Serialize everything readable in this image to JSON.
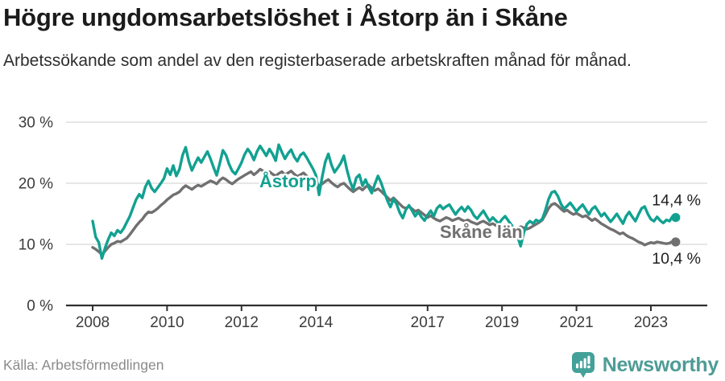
{
  "header": {
    "title": "Högre ungdomsarbetslöshet i Åstorp än i Skåne",
    "subtitle": "Arbetssökande som andel av den registerbaserade arbetskraften månad för månad."
  },
  "chart_data": {
    "type": "line",
    "title": "Högre ungdomsarbetslöshet i Åstorp än i Skåne",
    "xlabel": "",
    "ylabel": "Arbetssökande som andel av den registerbaserade arbetskraften",
    "x_unit": "month",
    "x_start": "2008-01",
    "x_end": "2023-09",
    "ylim": [
      0,
      30
    ],
    "grid": "horizontal",
    "legend_position": "inline-labels",
    "yticks": [
      {
        "value": 30,
        "label": "30 %"
      },
      {
        "value": 20,
        "label": "20 %"
      },
      {
        "value": 10,
        "label": "10 %"
      },
      {
        "value": 0,
        "label": "0 %"
      }
    ],
    "xticks": [
      {
        "year": 2008,
        "label": "2008"
      },
      {
        "year": 2010,
        "label": "2010"
      },
      {
        "year": 2012,
        "label": "2012"
      },
      {
        "year": 2014,
        "label": "2014"
      },
      {
        "year": 2017,
        "label": "2017"
      },
      {
        "year": 2019,
        "label": "2019"
      },
      {
        "year": 2021,
        "label": "2021"
      },
      {
        "year": 2023,
        "label": "2023"
      }
    ],
    "series": [
      {
        "name": "Åstorp",
        "color": "#12a191",
        "end_label": "14,4 %",
        "end_value": 14.4,
        "values": [
          13.8,
          11.2,
          10.3,
          7.7,
          9.4,
          10.8,
          11.9,
          11.4,
          12.3,
          11.9,
          12.6,
          13.6,
          14.6,
          16.0,
          17.3,
          18.2,
          17.6,
          19.4,
          20.4,
          19.2,
          18.6,
          19.3,
          20.0,
          20.8,
          22.4,
          21.4,
          22.9,
          21.2,
          22.3,
          24.6,
          25.9,
          23.6,
          22.1,
          23.2,
          24.2,
          23.4,
          24.3,
          25.2,
          24.0,
          22.6,
          21.3,
          23.3,
          25.4,
          24.6,
          23.1,
          22.0,
          21.5,
          22.4,
          23.4,
          24.7,
          25.6,
          24.9,
          23.8,
          25.2,
          26.1,
          25.3,
          24.5,
          25.6,
          24.8,
          23.7,
          26.3,
          25.1,
          24.0,
          24.9,
          25.5,
          24.3,
          23.6,
          24.6,
          25.0,
          24.2,
          23.3,
          22.4,
          21.3,
          18.1,
          21.0,
          23.5,
          24.8,
          23.0,
          21.8,
          22.5,
          23.3,
          24.5,
          22.2,
          20.3,
          19.0,
          20.9,
          21.4,
          19.6,
          20.6,
          19.3,
          18.4,
          19.9,
          21.2,
          20.1,
          18.6,
          17.2,
          16.1,
          17.4,
          16.6,
          15.2,
          14.3,
          15.7,
          16.4,
          15.5,
          14.6,
          15.3,
          14.5,
          13.9,
          14.8,
          15.5,
          14.6,
          15.9,
          16.4,
          15.8,
          16.2,
          16.5,
          15.7,
          14.9,
          15.6,
          16.1,
          15.4,
          16.2,
          15.6,
          14.7,
          14.2,
          14.9,
          15.5,
          14.6,
          13.8,
          14.4,
          13.9,
          13.4,
          14.1,
          14.6,
          13.9,
          13.2,
          12.4,
          11.3,
          9.7,
          11.9,
          13.3,
          13.8,
          13.4,
          14.0,
          13.7,
          14.2,
          15.6,
          17.4,
          18.5,
          18.7,
          17.9,
          16.6,
          15.8,
          16.3,
          16.8,
          16.1,
          15.4,
          16.0,
          16.5,
          15.7,
          14.9,
          15.8,
          16.2,
          15.4,
          14.6,
          15.1,
          14.4,
          13.7,
          14.3,
          15.0,
          14.2,
          13.4,
          14.6,
          15.3,
          14.5,
          13.8,
          14.9,
          15.9,
          16.2,
          15.0,
          14.1,
          13.8,
          14.5,
          13.9,
          13.5,
          14.0,
          13.8,
          14.6,
          14.4
        ]
      },
      {
        "name": "Skåne län",
        "color": "#707070",
        "end_label": "10,4 %",
        "end_value": 10.4,
        "values": [
          9.5,
          9.2,
          8.8,
          8.3,
          8.9,
          9.5,
          10.0,
          10.2,
          10.5,
          10.4,
          10.7,
          11.0,
          11.6,
          12.3,
          13.0,
          13.6,
          14.1,
          14.8,
          15.3,
          15.2,
          15.5,
          15.9,
          16.4,
          16.8,
          17.3,
          17.7,
          18.1,
          18.3,
          18.6,
          19.2,
          19.6,
          19.3,
          19.0,
          19.4,
          19.7,
          19.5,
          19.8,
          20.1,
          20.4,
          20.2,
          19.9,
          20.5,
          20.9,
          20.6,
          20.2,
          19.9,
          20.3,
          20.7,
          21.0,
          21.3,
          21.6,
          21.9,
          21.4,
          21.8,
          22.3,
          22.0,
          21.6,
          21.9,
          21.5,
          21.2,
          21.6,
          21.9,
          21.4,
          21.7,
          22.0,
          21.5,
          21.1,
          21.4,
          21.7,
          21.2,
          20.8,
          20.4,
          20.1,
          19.6,
          19.9,
          20.3,
          20.6,
          20.1,
          19.7,
          19.4,
          19.8,
          20.0,
          19.5,
          19.0,
          18.6,
          19.0,
          19.3,
          18.9,
          19.4,
          19.7,
          19.2,
          18.8,
          19.1,
          18.7,
          18.2,
          17.7,
          17.2,
          17.6,
          17.1,
          16.6,
          16.1,
          15.9,
          16.2,
          15.8,
          15.4,
          15.6,
          15.2,
          14.8,
          14.4,
          14.7,
          14.3,
          14.0,
          13.8,
          14.1,
          14.4,
          14.2,
          13.9,
          14.1,
          14.3,
          14.0,
          13.8,
          14.0,
          13.7,
          13.5,
          13.3,
          13.6,
          13.8,
          13.5,
          13.2,
          13.4,
          13.1,
          12.9,
          12.8,
          13.0,
          12.7,
          12.5,
          12.4,
          12.6,
          12.9,
          12.7,
          12.5,
          12.7,
          13.0,
          13.3,
          13.6,
          14.0,
          14.9,
          15.9,
          16.5,
          16.7,
          16.3,
          15.8,
          15.4,
          15.6,
          15.2,
          14.9,
          15.1,
          14.8,
          14.5,
          14.7,
          14.3,
          13.9,
          14.2,
          13.8,
          13.4,
          13.1,
          12.8,
          12.5,
          12.3,
          12.0,
          11.7,
          11.9,
          11.5,
          11.2,
          11.0,
          10.7,
          10.4,
          10.2,
          9.9,
          10.1,
          10.3,
          10.2,
          10.4,
          10.3,
          10.2,
          10.1,
          10.2,
          10.5,
          10.4
        ]
      }
    ],
    "colors": {
      "astorp": "#12a191",
      "skane": "#707070",
      "gridline": "#dedede",
      "axis": "#2f2f2f",
      "tick_text": "#3c3c3c",
      "end_label_text": "#1f1f1f"
    }
  },
  "footer": {
    "source": "Källa: Arbetsförmedlingen",
    "brand": "Newsworthy",
    "brand_color": "#4e9c96"
  }
}
